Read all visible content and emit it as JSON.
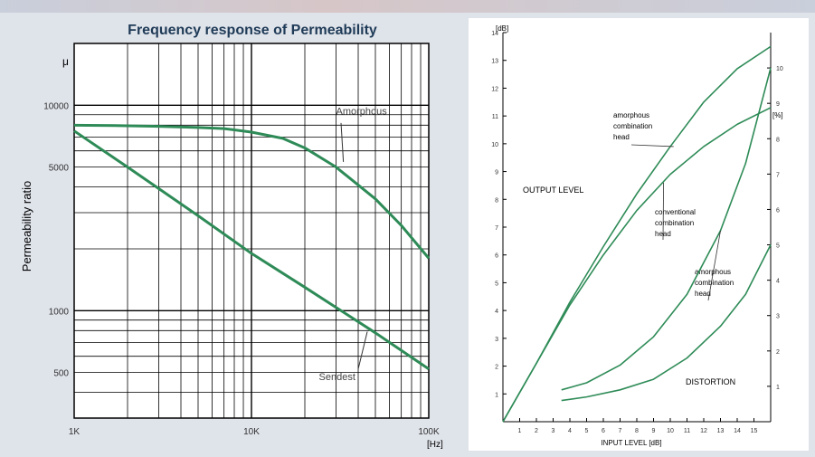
{
  "colors": {
    "page_background": "#dfe3ea",
    "plot_background": "#ffffff",
    "grid": "#000000",
    "curve": "#2e8b57",
    "title_text": "#1f3b57",
    "tick_text": "#333333"
  },
  "chart_data": [
    {
      "type": "line",
      "title": "Frequency response of Permeability",
      "ylabel": "Permeability ratio",
      "y_axis_symbol": "μ",
      "x_unit": "[Hz]",
      "x_scale": "log",
      "y_scale": "log",
      "xlim": [
        1000,
        100000
      ],
      "ylim": [
        300,
        20000
      ],
      "grid": true,
      "x_ticks": [
        {
          "value": 1000,
          "label": "1K"
        },
        {
          "value": 10000,
          "label": "10K"
        },
        {
          "value": 100000,
          "label": "100K"
        }
      ],
      "y_ticks": [
        {
          "value": 500,
          "label": "500"
        },
        {
          "value": 1000,
          "label": "1000"
        },
        {
          "value": 5000,
          "label": "5000"
        },
        {
          "value": 10000,
          "label": "10000"
        }
      ],
      "series": [
        {
          "name": "Amorphous",
          "x": [
            1000,
            2000,
            3000,
            5000,
            7000,
            10000,
            15000,
            20000,
            30000,
            50000,
            70000,
            100000
          ],
          "y": [
            8000,
            7950,
            7900,
            7800,
            7700,
            7400,
            6900,
            6200,
            5000,
            3500,
            2600,
            1800
          ]
        },
        {
          "name": "Sendest",
          "x": [
            1000,
            2000,
            5000,
            10000,
            20000,
            50000,
            100000
          ],
          "y": [
            7500,
            5000,
            2900,
            1900,
            1300,
            780,
            520
          ]
        }
      ]
    },
    {
      "type": "line",
      "xlabel": "INPUT LEVEL [dB]",
      "y_unit_left": "[dB]",
      "y_unit_right": "[%]",
      "xlim": [
        0,
        16
      ],
      "ylim_left": [
        0,
        14
      ],
      "ylim_right": [
        0,
        11
      ],
      "grid": false,
      "x_ticks": [
        "1",
        "2",
        "3",
        "4",
        "5",
        "6",
        "7",
        "8",
        "9",
        "10",
        "11",
        "12",
        "13",
        "14",
        "15"
      ],
      "y_ticks_left": [
        "1",
        "2",
        "3",
        "4",
        "5",
        "6",
        "7",
        "8",
        "9",
        "10",
        "11",
        "12",
        "13",
        "14"
      ],
      "y_ticks_right": [
        "1",
        "2",
        "3",
        "4",
        "5",
        "6",
        "7",
        "8",
        "9",
        "10"
      ],
      "annotations": {
        "output_level": "OUTPUT LEVEL",
        "distortion": "DISTORTION",
        "amorphous_output": [
          "amorphous",
          "combination",
          "head"
        ],
        "conventional": [
          "conventional",
          "combination",
          "head"
        ],
        "amorphous_distortion": [
          "amorphous",
          "combination",
          "head"
        ]
      },
      "series": [
        {
          "group": "output",
          "axis": "left",
          "x": [
            0,
            2,
            4,
            6,
            8,
            10,
            12,
            14,
            16
          ],
          "y": [
            0,
            2.1,
            4.3,
            6.3,
            8.2,
            9.9,
            11.5,
            12.7,
            13.5
          ]
        },
        {
          "group": "output",
          "axis": "left",
          "x": [
            0,
            2,
            4,
            6,
            8,
            10,
            12,
            14,
            16
          ],
          "y": [
            0,
            2.1,
            4.2,
            6.0,
            7.6,
            8.9,
            9.9,
            10.7,
            11.3
          ]
        },
        {
          "group": "distortion",
          "axis": "right",
          "x": [
            3.5,
            5,
            7,
            9,
            11,
            13,
            14.5,
            16
          ],
          "y": [
            0.9,
            1.1,
            1.6,
            2.4,
            3.6,
            5.4,
            7.3,
            10.0
          ]
        },
        {
          "group": "distortion",
          "axis": "right",
          "x": [
            3.5,
            5,
            7,
            9,
            11,
            13,
            14.5,
            16
          ],
          "y": [
            0.6,
            0.7,
            0.9,
            1.2,
            1.8,
            2.7,
            3.6,
            5.0
          ]
        }
      ]
    }
  ]
}
